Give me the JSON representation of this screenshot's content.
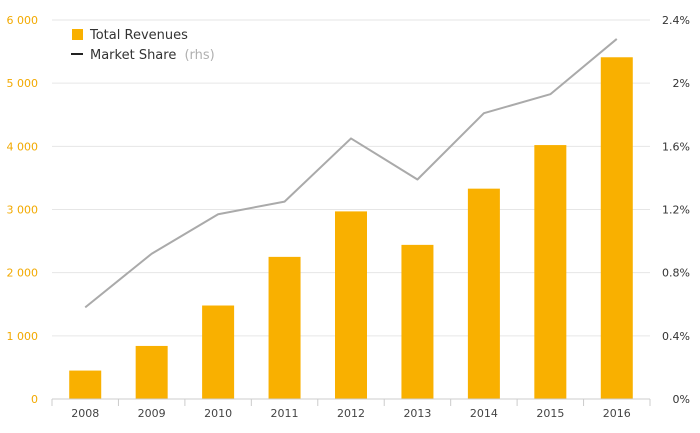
{
  "colors": {
    "bar": "#f9b000",
    "line": "#aaaaaa",
    "left_axis_text": "#f2a900",
    "right_axis_text": "#333333",
    "grid": "#e6e6e6",
    "legend_line": "#222222"
  },
  "legend": {
    "revenues_label": "Total Revenues",
    "share_label": "Market Share",
    "share_suffix": "(rhs)",
    "placement": "top-left"
  },
  "chart_data": {
    "type": "bar",
    "categories": [
      "2008",
      "2009",
      "2010",
      "2011",
      "2012",
      "2013",
      "2014",
      "2015",
      "2016"
    ],
    "series": [
      {
        "name": "Total Revenues",
        "type": "bar",
        "axis": "left",
        "values": [
          450,
          840,
          1480,
          2250,
          2970,
          2440,
          3330,
          4020,
          5410
        ]
      },
      {
        "name": "Market Share",
        "type": "line",
        "axis": "right",
        "values": [
          0.58,
          0.92,
          1.17,
          1.25,
          1.65,
          1.39,
          1.81,
          1.93,
          2.28
        ]
      }
    ],
    "y_left": {
      "ylim": [
        0,
        6000
      ],
      "ticks": [
        0,
        1000,
        2000,
        3000,
        4000,
        5000,
        6000
      ],
      "tick_labels": [
        "0",
        "1 000",
        "2 000",
        "3 000",
        "4 000",
        "5 000",
        "6 000"
      ]
    },
    "y_right": {
      "ylim": [
        0,
        2.4
      ],
      "ticks": [
        0,
        0.4,
        0.8,
        1.2,
        1.6,
        2.0,
        2.4
      ],
      "tick_labels": [
        "0%",
        "0.4%",
        "0.8%",
        "1.2%",
        "1.6%",
        "2%",
        "2.4%"
      ]
    },
    "grid": true
  }
}
